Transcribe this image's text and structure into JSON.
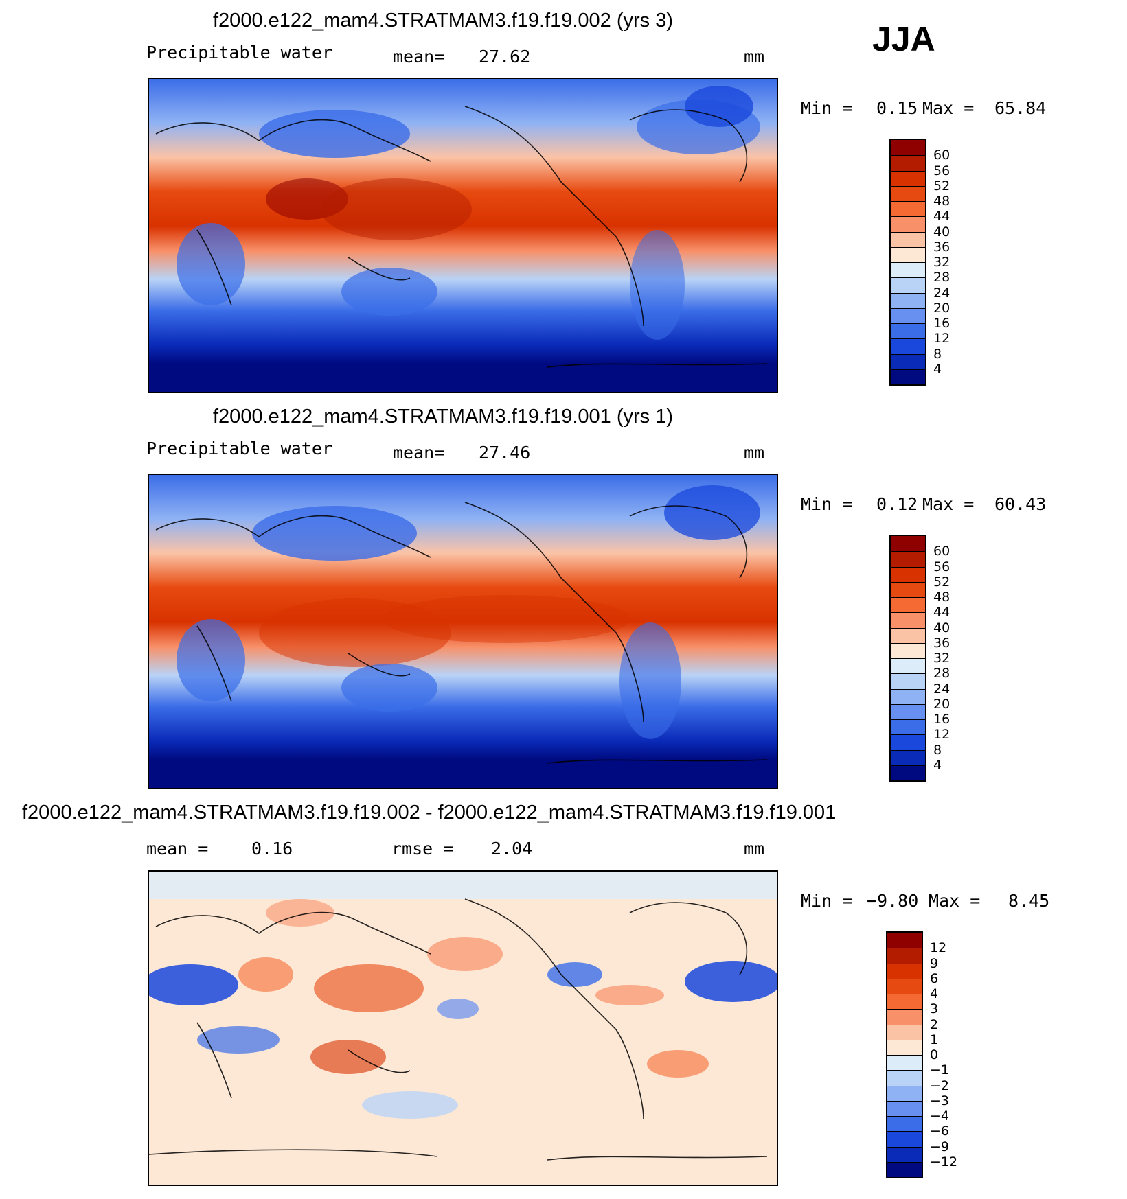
{
  "season": "JJA",
  "panels": [
    {
      "id": "p1",
      "title": "f2000.e122_mam4.STRATMAM3.f19.f19.002 (yrs 3)",
      "left_label": "Precipitable water",
      "stat1_label": "mean=",
      "stat1_value": "27.62",
      "stat2_label": "",
      "stat2_value": "",
      "units": "mm",
      "min_label": "Min =",
      "min_value": "0.15",
      "max_label": "Max =",
      "max_value": "65.84",
      "colorbar": {
        "labels": [
          "60",
          "56",
          "52",
          "48",
          "44",
          "40",
          "36",
          "32",
          "28",
          "24",
          "20",
          "16",
          "12",
          "8",
          "4"
        ],
        "colors": [
          "#8f0000",
          "#b41c00",
          "#d83200",
          "#e74a10",
          "#f56a32",
          "#f8916a",
          "#fbc3a6",
          "#fde8d6",
          "#dcecf9",
          "#b9d3f6",
          "#8fb2f4",
          "#6790f0",
          "#3b6de8",
          "#1a48dc",
          "#0a2ab8",
          "#000a80"
        ]
      }
    },
    {
      "id": "p2",
      "title": "f2000.e122_mam4.STRATMAM3.f19.f19.001 (yrs 1)",
      "left_label": "Precipitable water",
      "stat1_label": "mean=",
      "stat1_value": "27.46",
      "stat2_label": "",
      "stat2_value": "",
      "units": "mm",
      "min_label": "Min =",
      "min_value": "0.12",
      "max_label": "Max =",
      "max_value": "60.43",
      "colorbar": {
        "labels": [
          "60",
          "56",
          "52",
          "48",
          "44",
          "40",
          "36",
          "32",
          "28",
          "24",
          "20",
          "16",
          "12",
          "8",
          "4"
        ],
        "colors": [
          "#8f0000",
          "#b41c00",
          "#d83200",
          "#e74a10",
          "#f56a32",
          "#f8916a",
          "#fbc3a6",
          "#fde8d6",
          "#dcecf9",
          "#b9d3f6",
          "#8fb2f4",
          "#6790f0",
          "#3b6de8",
          "#1a48dc",
          "#0a2ab8",
          "#000a80"
        ]
      }
    },
    {
      "id": "p3",
      "title": "f2000.e122_mam4.STRATMAM3.f19.f19.002 - f2000.e122_mam4.STRATMAM3.f19.f19.001",
      "left_label": "",
      "stat1_label": "mean =",
      "stat1_value": "0.16",
      "stat2_label": "rmse =",
      "stat2_value": "2.04",
      "units": "mm",
      "min_label": "Min =",
      "min_value": "−9.80",
      "max_label": "Max =",
      "max_value": "8.45",
      "colorbar": {
        "labels": [
          "12",
          "9",
          "6",
          "4",
          "3",
          "2",
          "1",
          "0",
          "−1",
          "−2",
          "−3",
          "−4",
          "−6",
          "−9",
          "−12"
        ],
        "colors": [
          "#8f0000",
          "#b41c00",
          "#d83200",
          "#e74a10",
          "#f56a32",
          "#f8916a",
          "#fbc3a6",
          "#fde8d6",
          "#dcecf9",
          "#b9d3f6",
          "#8fb2f4",
          "#6790f0",
          "#3b6de8",
          "#1a48dc",
          "#0a2ab8",
          "#000a80"
        ]
      }
    }
  ]
}
